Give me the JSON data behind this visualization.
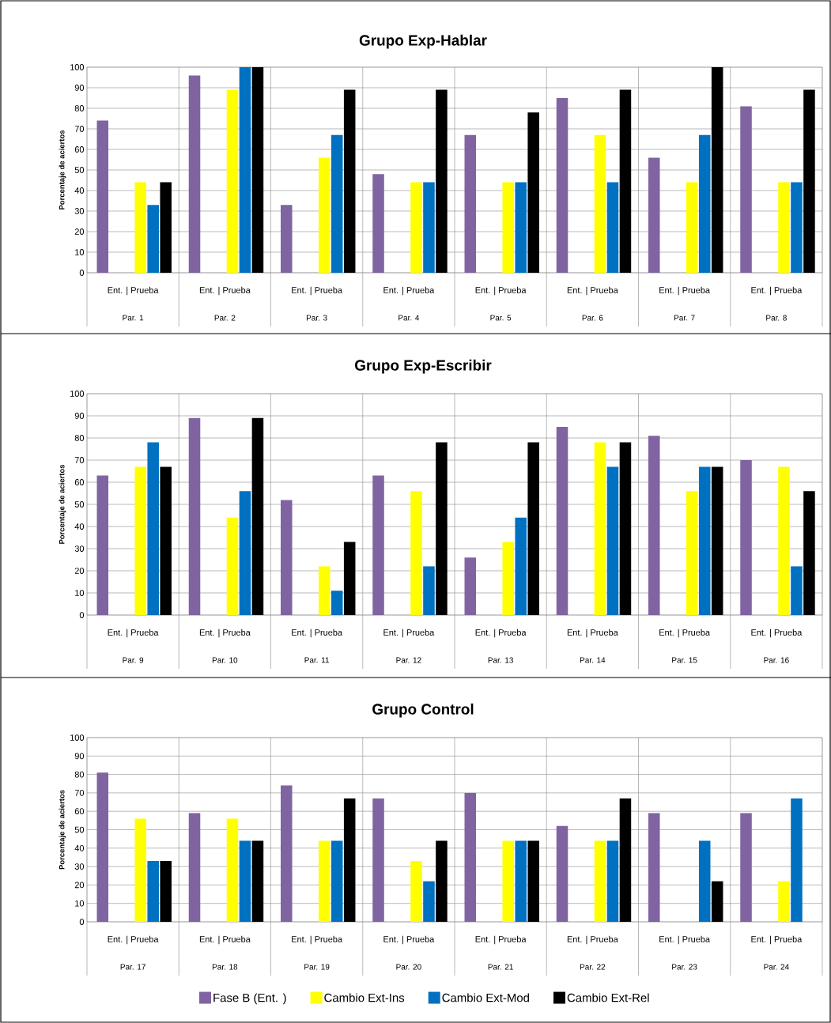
{
  "chart_data": [
    {
      "type": "bar",
      "title": "Grupo Exp-Hablar",
      "ylabel": "Porcentaje de aciertos",
      "categories": [
        "Par. 1",
        "Par. 2",
        "Par. 3",
        "Par. 4",
        "Par. 5",
        "Par. 6",
        "Par. 7",
        "Par. 8"
      ],
      "annotations": [
        "Ent. | Prueba",
        "Ent. | Prueba",
        "Ent. | Prueba",
        "Ent. | Prueba",
        "Ent. | Prueba",
        "Ent. | Prueba",
        "Ent. | Prueba",
        "Ent. | Prueba"
      ],
      "series": [
        {
          "color": "#8064a2",
          "values": [
            74,
            96,
            33,
            48,
            67,
            85,
            56,
            81
          ]
        },
        {
          "color": "#ffff00",
          "values": [
            44,
            89,
            56,
            44,
            44,
            67,
            44,
            44
          ]
        },
        {
          "color": "#0070c0",
          "values": [
            33,
            100,
            67,
            44,
            44,
            44,
            67,
            44
          ]
        },
        {
          "color": "#000000",
          "values": [
            44,
            100,
            89,
            89,
            78,
            89,
            100,
            89
          ]
        }
      ],
      "ylim": [
        0,
        100
      ],
      "yticks": [
        0,
        10,
        20,
        30,
        40,
        50,
        60,
        70,
        80,
        90,
        100
      ],
      "grid": true
    },
    {
      "type": "bar",
      "title": "Grupo Exp-Escribir",
      "ylabel": "Porcentaje de aciertos",
      "categories": [
        "Par. 9",
        "Par. 10",
        "Par. 11",
        "Par. 12",
        "Par. 13",
        "Par. 14",
        "Par. 15",
        "Par. 16"
      ],
      "annotations": [
        "Ent. | Prueba",
        "Ent. | Prueba",
        "Ent. | Prueba",
        "Ent. | Prueba",
        "Ent. | Prueba",
        "Ent. | Prueba",
        "Ent. | Prueba",
        "Ent. | Prueba"
      ],
      "series": [
        {
          "color": "#8064a2",
          "values": [
            63,
            89,
            52,
            63,
            26,
            85,
            81,
            70
          ]
        },
        {
          "color": "#ffff00",
          "values": [
            67,
            44,
            22,
            56,
            33,
            78,
            56,
            67
          ]
        },
        {
          "color": "#0070c0",
          "values": [
            78,
            56,
            11,
            22,
            44,
            67,
            67,
            22
          ]
        },
        {
          "color": "#000000",
          "values": [
            67,
            89,
            33,
            78,
            78,
            78,
            67,
            56
          ]
        }
      ],
      "ylim": [
        0,
        100
      ],
      "yticks": [
        0,
        10,
        20,
        30,
        40,
        50,
        60,
        70,
        80,
        90,
        100
      ],
      "grid": true
    },
    {
      "type": "bar",
      "title": "Grupo Control",
      "ylabel": "Porcentaje de aciertos",
      "categories": [
        "Par. 17",
        "Par. 18",
        "Par. 19",
        "Par. 20",
        "Par. 21",
        "Par. 22",
        "Par. 23",
        "Par. 24"
      ],
      "annotations": [
        "Ent. | Prueba",
        "Ent. | Prueba",
        "Ent. | Prueba",
        "Ent. | Prueba",
        "Ent. | Prueba",
        "Ent. | Prueba",
        "Ent. | Prueba",
        "Ent. | Prueba"
      ],
      "series": [
        {
          "name": "Fase B (Ent. )",
          "color": "#8064a2",
          "values": [
            81,
            59,
            74,
            67,
            70,
            52,
            59,
            59
          ]
        },
        {
          "name": "Cambio Ext-Ins",
          "color": "#ffff00",
          "values": [
            56,
            56,
            44,
            33,
            44,
            44,
            null,
            22
          ]
        },
        {
          "name": "Cambio Ext-Mod",
          "color": "#0070c0",
          "values": [
            33,
            44,
            44,
            22,
            44,
            44,
            44,
            67
          ]
        },
        {
          "name": "Cambio Ext-Rel",
          "color": "#000000",
          "values": [
            33,
            44,
            67,
            44,
            44,
            67,
            22,
            null
          ]
        }
      ],
      "ylim": [
        0,
        100
      ],
      "yticks": [
        0,
        10,
        20,
        30,
        40,
        50,
        60,
        70,
        80,
        90,
        100
      ],
      "grid": true,
      "legend": "bottom"
    }
  ]
}
